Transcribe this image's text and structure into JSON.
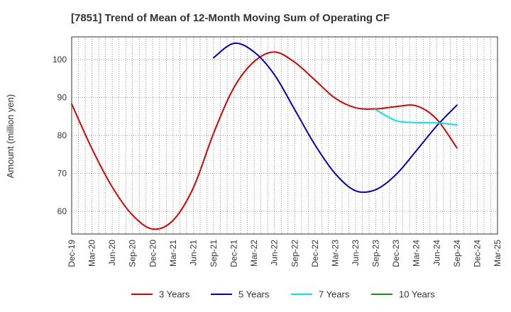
{
  "chart_data": {
    "type": "line",
    "title": "[7851]  Trend of Mean of 12-Month Moving Sum of Operating CF",
    "xlabel": "",
    "ylabel": "Amount (million yen)",
    "ylim": [
      54,
      106
    ],
    "yticks": [
      60,
      70,
      80,
      90,
      100
    ],
    "x_range": [
      "Dec-19",
      "Mar-25"
    ],
    "categories": [
      "Dec-19",
      "Mar-20",
      "Jun-20",
      "Sep-20",
      "Dec-20",
      "Mar-21",
      "Jun-21",
      "Sep-21",
      "Dec-21",
      "Mar-22",
      "Jun-22",
      "Sep-22",
      "Dec-22",
      "Mar-23",
      "Jun-23",
      "Sep-23",
      "Dec-23",
      "Mar-24",
      "Jun-24",
      "Sep-24",
      "Dec-24",
      "Mar-25"
    ],
    "grid": true,
    "legend_position": "bottom",
    "series": [
      {
        "name": "3 Years",
        "color": "#e00000",
        "x": [
          "Dec-19",
          "Mar-20",
          "Jun-20",
          "Sep-20",
          "Dec-20",
          "Mar-21",
          "Jun-21",
          "Sep-21",
          "Dec-21",
          "Mar-22",
          "Jun-22",
          "Sep-22",
          "Dec-22",
          "Mar-23",
          "Jun-23",
          "Sep-23",
          "Dec-23",
          "Mar-24",
          "Jun-24",
          "Sep-24"
        ],
        "values": [
          88.3,
          76.5,
          66.4,
          59.0,
          55.3,
          57.6,
          66.2,
          80.6,
          92.6,
          99.5,
          102.0,
          99.3,
          94.6,
          89.8,
          87.3,
          87.0,
          87.6,
          87.8,
          84.3,
          76.7
        ]
      },
      {
        "name": "5 Years",
        "color": "#0000cc",
        "x": [
          "Sep-21",
          "Dec-21",
          "Mar-22",
          "Jun-22",
          "Sep-22",
          "Dec-22",
          "Mar-23",
          "Jun-23",
          "Sep-23",
          "Dec-23",
          "Mar-24",
          "Jun-24",
          "Sep-24"
        ],
        "values": [
          100.5,
          104.3,
          102.0,
          96.0,
          86.8,
          77.5,
          69.9,
          65.4,
          65.7,
          69.7,
          76.0,
          82.5,
          88.0
        ]
      },
      {
        "name": "7 Years",
        "color": "#00e5ee",
        "x": [
          "Sep-23",
          "Dec-23",
          "Mar-24",
          "Jun-24",
          "Sep-24"
        ],
        "values": [
          86.8,
          83.9,
          83.4,
          83.3,
          82.8
        ]
      },
      {
        "name": "10 Years",
        "color": "#228b22",
        "x": [],
        "values": []
      }
    ]
  }
}
